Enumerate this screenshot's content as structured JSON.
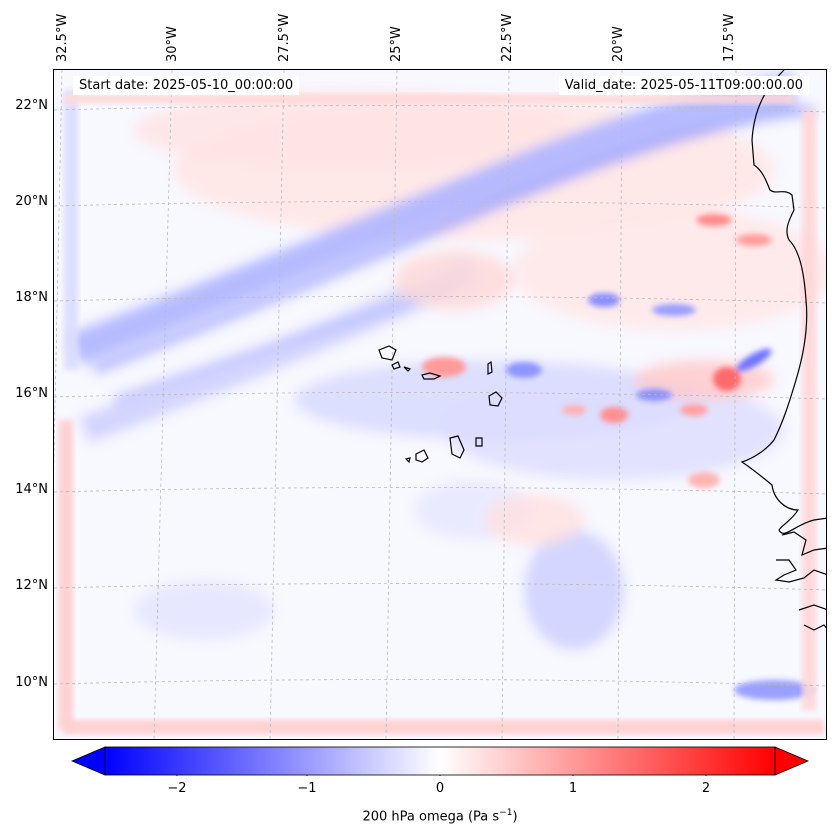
{
  "header": {
    "start_date": "Start date: 2025-05-10_00:00:00",
    "valid_date": "Valid_date: 2025-05-11T09:00:00.00"
  },
  "axes": {
    "lon_labels": [
      "32.5°W",
      "30°W",
      "27.5°W",
      "25°W",
      "22.5°W",
      "20°W",
      "17.5°W"
    ],
    "lat_labels": [
      "22°N",
      "20°N",
      "18°N",
      "16°N",
      "14°N",
      "12°N",
      "10°N"
    ]
  },
  "colorbar": {
    "ticks": [
      "−2",
      "−1",
      "0",
      "1",
      "2"
    ],
    "label_text": "200 hPa omega (Pa s",
    "label_exp": "−1",
    "label_close": ")",
    "min_color": "#0000ff",
    "mid_color": "#ffffff",
    "max_color": "#ff0000"
  },
  "map": {
    "features": [
      "coastline",
      "cape-verde-islands",
      "gridlines"
    ],
    "colors": {
      "low": "#6a6aff",
      "high": "#ff5a5a",
      "coast": "#000000",
      "grid": "#bbbbbb"
    }
  }
}
